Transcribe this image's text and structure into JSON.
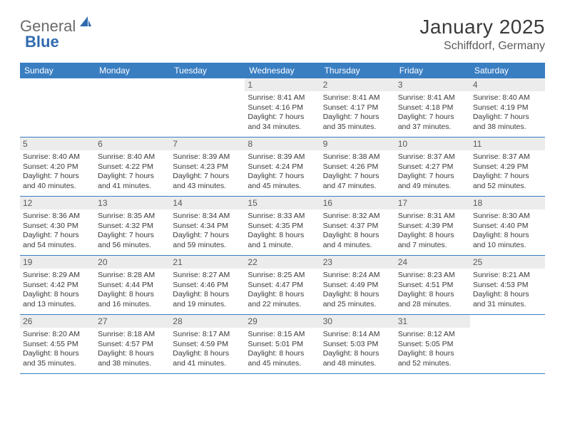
{
  "logo": {
    "part1": "General",
    "part2": "Blue"
  },
  "title": "January 2025",
  "location": "Schiffdorf, Germany",
  "colors": {
    "header_bg": "#3a7ec2",
    "daynum_bg": "#ececec",
    "text": "#3a3a3a",
    "logo_gray": "#6a6a6a",
    "logo_blue": "#2f6ab0"
  },
  "dayNames": [
    "Sunday",
    "Monday",
    "Tuesday",
    "Wednesday",
    "Thursday",
    "Friday",
    "Saturday"
  ],
  "weeks": [
    [
      null,
      null,
      null,
      {
        "n": "1",
        "sr": "Sunrise: 8:41 AM",
        "ss": "Sunset: 4:16 PM",
        "d1": "Daylight: 7 hours",
        "d2": "and 34 minutes."
      },
      {
        "n": "2",
        "sr": "Sunrise: 8:41 AM",
        "ss": "Sunset: 4:17 PM",
        "d1": "Daylight: 7 hours",
        "d2": "and 35 minutes."
      },
      {
        "n": "3",
        "sr": "Sunrise: 8:41 AM",
        "ss": "Sunset: 4:18 PM",
        "d1": "Daylight: 7 hours",
        "d2": "and 37 minutes."
      },
      {
        "n": "4",
        "sr": "Sunrise: 8:40 AM",
        "ss": "Sunset: 4:19 PM",
        "d1": "Daylight: 7 hours",
        "d2": "and 38 minutes."
      }
    ],
    [
      {
        "n": "5",
        "sr": "Sunrise: 8:40 AM",
        "ss": "Sunset: 4:20 PM",
        "d1": "Daylight: 7 hours",
        "d2": "and 40 minutes."
      },
      {
        "n": "6",
        "sr": "Sunrise: 8:40 AM",
        "ss": "Sunset: 4:22 PM",
        "d1": "Daylight: 7 hours",
        "d2": "and 41 minutes."
      },
      {
        "n": "7",
        "sr": "Sunrise: 8:39 AM",
        "ss": "Sunset: 4:23 PM",
        "d1": "Daylight: 7 hours",
        "d2": "and 43 minutes."
      },
      {
        "n": "8",
        "sr": "Sunrise: 8:39 AM",
        "ss": "Sunset: 4:24 PM",
        "d1": "Daylight: 7 hours",
        "d2": "and 45 minutes."
      },
      {
        "n": "9",
        "sr": "Sunrise: 8:38 AM",
        "ss": "Sunset: 4:26 PM",
        "d1": "Daylight: 7 hours",
        "d2": "and 47 minutes."
      },
      {
        "n": "10",
        "sr": "Sunrise: 8:37 AM",
        "ss": "Sunset: 4:27 PM",
        "d1": "Daylight: 7 hours",
        "d2": "and 49 minutes."
      },
      {
        "n": "11",
        "sr": "Sunrise: 8:37 AM",
        "ss": "Sunset: 4:29 PM",
        "d1": "Daylight: 7 hours",
        "d2": "and 52 minutes."
      }
    ],
    [
      {
        "n": "12",
        "sr": "Sunrise: 8:36 AM",
        "ss": "Sunset: 4:30 PM",
        "d1": "Daylight: 7 hours",
        "d2": "and 54 minutes."
      },
      {
        "n": "13",
        "sr": "Sunrise: 8:35 AM",
        "ss": "Sunset: 4:32 PM",
        "d1": "Daylight: 7 hours",
        "d2": "and 56 minutes."
      },
      {
        "n": "14",
        "sr": "Sunrise: 8:34 AM",
        "ss": "Sunset: 4:34 PM",
        "d1": "Daylight: 7 hours",
        "d2": "and 59 minutes."
      },
      {
        "n": "15",
        "sr": "Sunrise: 8:33 AM",
        "ss": "Sunset: 4:35 PM",
        "d1": "Daylight: 8 hours",
        "d2": "and 1 minute."
      },
      {
        "n": "16",
        "sr": "Sunrise: 8:32 AM",
        "ss": "Sunset: 4:37 PM",
        "d1": "Daylight: 8 hours",
        "d2": "and 4 minutes."
      },
      {
        "n": "17",
        "sr": "Sunrise: 8:31 AM",
        "ss": "Sunset: 4:39 PM",
        "d1": "Daylight: 8 hours",
        "d2": "and 7 minutes."
      },
      {
        "n": "18",
        "sr": "Sunrise: 8:30 AM",
        "ss": "Sunset: 4:40 PM",
        "d1": "Daylight: 8 hours",
        "d2": "and 10 minutes."
      }
    ],
    [
      {
        "n": "19",
        "sr": "Sunrise: 8:29 AM",
        "ss": "Sunset: 4:42 PM",
        "d1": "Daylight: 8 hours",
        "d2": "and 13 minutes."
      },
      {
        "n": "20",
        "sr": "Sunrise: 8:28 AM",
        "ss": "Sunset: 4:44 PM",
        "d1": "Daylight: 8 hours",
        "d2": "and 16 minutes."
      },
      {
        "n": "21",
        "sr": "Sunrise: 8:27 AM",
        "ss": "Sunset: 4:46 PM",
        "d1": "Daylight: 8 hours",
        "d2": "and 19 minutes."
      },
      {
        "n": "22",
        "sr": "Sunrise: 8:25 AM",
        "ss": "Sunset: 4:47 PM",
        "d1": "Daylight: 8 hours",
        "d2": "and 22 minutes."
      },
      {
        "n": "23",
        "sr": "Sunrise: 8:24 AM",
        "ss": "Sunset: 4:49 PM",
        "d1": "Daylight: 8 hours",
        "d2": "and 25 minutes."
      },
      {
        "n": "24",
        "sr": "Sunrise: 8:23 AM",
        "ss": "Sunset: 4:51 PM",
        "d1": "Daylight: 8 hours",
        "d2": "and 28 minutes."
      },
      {
        "n": "25",
        "sr": "Sunrise: 8:21 AM",
        "ss": "Sunset: 4:53 PM",
        "d1": "Daylight: 8 hours",
        "d2": "and 31 minutes."
      }
    ],
    [
      {
        "n": "26",
        "sr": "Sunrise: 8:20 AM",
        "ss": "Sunset: 4:55 PM",
        "d1": "Daylight: 8 hours",
        "d2": "and 35 minutes."
      },
      {
        "n": "27",
        "sr": "Sunrise: 8:18 AM",
        "ss": "Sunset: 4:57 PM",
        "d1": "Daylight: 8 hours",
        "d2": "and 38 minutes."
      },
      {
        "n": "28",
        "sr": "Sunrise: 8:17 AM",
        "ss": "Sunset: 4:59 PM",
        "d1": "Daylight: 8 hours",
        "d2": "and 41 minutes."
      },
      {
        "n": "29",
        "sr": "Sunrise: 8:15 AM",
        "ss": "Sunset: 5:01 PM",
        "d1": "Daylight: 8 hours",
        "d2": "and 45 minutes."
      },
      {
        "n": "30",
        "sr": "Sunrise: 8:14 AM",
        "ss": "Sunset: 5:03 PM",
        "d1": "Daylight: 8 hours",
        "d2": "and 48 minutes."
      },
      {
        "n": "31",
        "sr": "Sunrise: 8:12 AM",
        "ss": "Sunset: 5:05 PM",
        "d1": "Daylight: 8 hours",
        "d2": "and 52 minutes."
      },
      null
    ]
  ]
}
